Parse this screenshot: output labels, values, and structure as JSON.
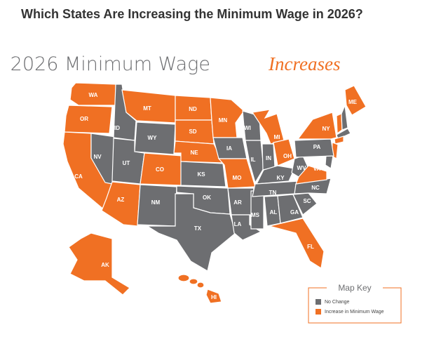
{
  "header": {
    "title": "Which States Are Increasing the Minimum Wage in 2026?"
  },
  "map": {
    "title_main": "2026 Minimum Wage",
    "title_accent": "Increases",
    "states": [
      {
        "label": "WA",
        "color": "#f07023"
      },
      {
        "label": "OR",
        "color": "#f07023"
      },
      {
        "label": "CA",
        "color": "#f07023"
      },
      {
        "label": "NV",
        "color": "#6d6e71"
      },
      {
        "label": "ID",
        "color": "#6d6e71"
      },
      {
        "label": "MT",
        "color": "#f07023"
      },
      {
        "label": "WY",
        "color": "#6d6e71"
      },
      {
        "label": "UT",
        "color": "#6d6e71"
      },
      {
        "label": "CO",
        "color": "#f07023"
      },
      {
        "label": "AZ",
        "color": "#f07023"
      },
      {
        "label": "NM",
        "color": "#6d6e71"
      },
      {
        "label": "ND",
        "color": "#f07023"
      },
      {
        "label": "SD",
        "color": "#f07023"
      },
      {
        "label": "NE",
        "color": "#f07023"
      },
      {
        "label": "KS",
        "color": "#6d6e71"
      },
      {
        "label": "OK",
        "color": "#6d6e71"
      },
      {
        "label": "TX",
        "color": "#6d6e71"
      },
      {
        "label": "MN",
        "color": "#f07023"
      },
      {
        "label": "IA",
        "color": "#6d6e71"
      },
      {
        "label": "MO",
        "color": "#f07023"
      },
      {
        "label": "AR",
        "color": "#6d6e71"
      },
      {
        "label": "LA",
        "color": "#6d6e71"
      },
      {
        "label": "WI",
        "color": "#6d6e71"
      },
      {
        "label": "IL",
        "color": "#6d6e71"
      },
      {
        "label": "MS",
        "color": "#6d6e71"
      },
      {
        "label": "MI",
        "color": "#f07023"
      },
      {
        "label": "IN",
        "color": "#6d6e71"
      },
      {
        "label": "OH",
        "color": "#f07023"
      },
      {
        "label": "KY",
        "color": "#6d6e71"
      },
      {
        "label": "TN",
        "color": "#6d6e71"
      },
      {
        "label": "AL",
        "color": "#6d6e71"
      },
      {
        "label": "GA",
        "color": "#6d6e71"
      },
      {
        "label": "FL",
        "color": "#f07023"
      },
      {
        "label": "SC",
        "color": "#6d6e71"
      },
      {
        "label": "NC",
        "color": "#6d6e71"
      },
      {
        "label": "WV",
        "color": "#6d6e71"
      },
      {
        "label": "VA",
        "color": "#f07023"
      },
      {
        "label": "PA",
        "color": "#6d6e71"
      },
      {
        "label": "NY",
        "color": "#f07023"
      },
      {
        "label": "ME",
        "color": "#f07023"
      },
      {
        "label": "AK",
        "color": "#f07023"
      },
      {
        "label": "HI",
        "color": "#f07023"
      }
    ],
    "key": {
      "title": "Map Key",
      "items": [
        {
          "label": "No Change",
          "color": "#6d6e71"
        },
        {
          "label": "Increase in Minimum Wage",
          "color": "#f07023"
        }
      ]
    }
  }
}
